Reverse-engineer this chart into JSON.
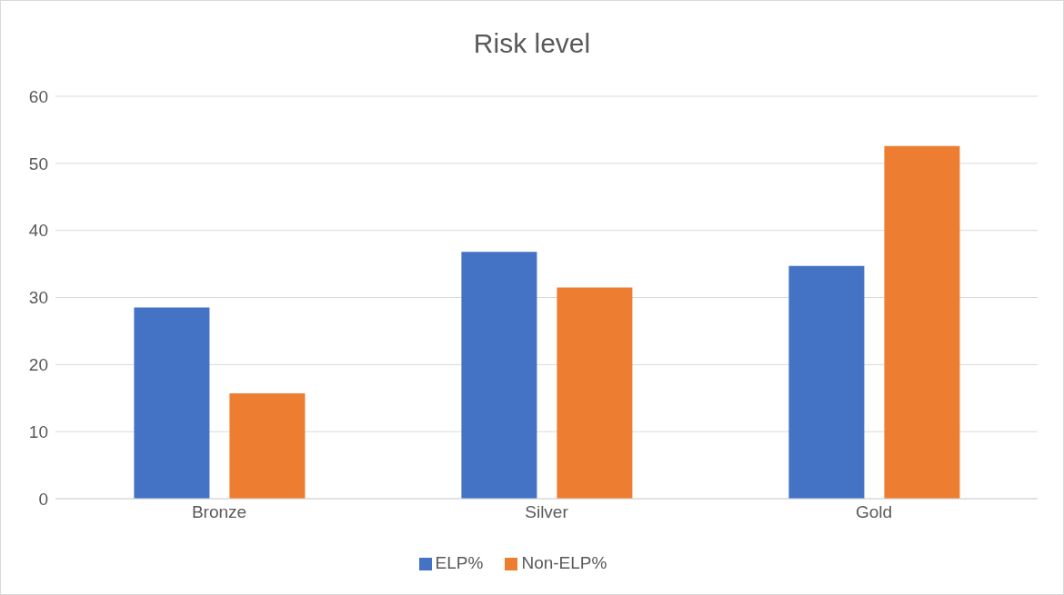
{
  "chart_data": {
    "type": "bar",
    "title": "Risk level",
    "categories": [
      "Bronze",
      "Silver",
      "Gold"
    ],
    "series": [
      {
        "name": "ELP%",
        "color": "#4472c4",
        "values": [
          28.5,
          36.8,
          34.7
        ]
      },
      {
        "name": "Non-ELP%",
        "color": "#ed7d31",
        "values": [
          15.7,
          31.5,
          52.6
        ]
      }
    ],
    "ylim": [
      0,
      60
    ],
    "yticks": [
      0,
      10,
      20,
      30,
      40,
      50,
      60
    ],
    "grid": "y",
    "legend": "bottom"
  }
}
